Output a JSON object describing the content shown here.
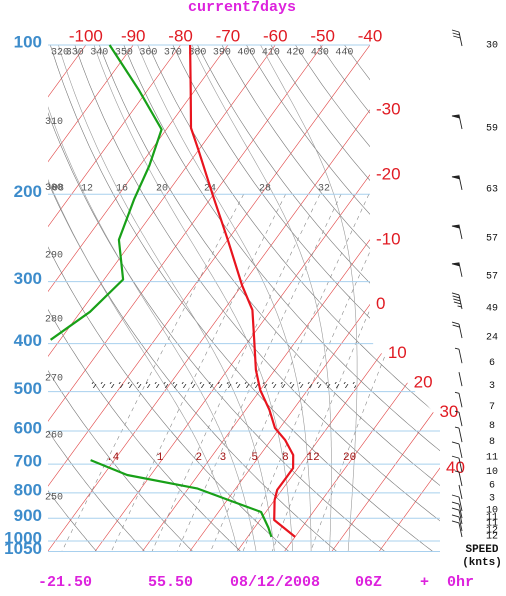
{
  "chart_data": {
    "type": "skewt",
    "title": "current7days",
    "yscale": "log",
    "ylim": [
      100,
      1050
    ],
    "yticks": [
      100,
      200,
      300,
      400,
      500,
      600,
      700,
      800,
      900,
      1000,
      1050
    ],
    "xlim": [
      -108,
      -40
    ],
    "xticks": [
      -100,
      -90,
      -80,
      -70,
      -60,
      -50,
      -40,
      -30,
      -20,
      -10,
      0,
      10,
      20,
      30,
      40
    ],
    "theta_ticks": [
      250,
      260,
      270,
      280,
      290,
      300,
      310,
      320,
      330,
      340,
      350,
      360,
      370,
      380,
      390,
      400,
      410,
      420,
      430,
      440
    ],
    "moist_ticks": [
      {
        "value": 8,
        "label": "08"
      },
      12,
      16,
      20,
      24,
      28,
      32
    ],
    "mixing_ticks": [
      {
        "value": 0.4,
        "label": ".4"
      },
      1,
      2,
      3,
      5,
      8,
      12,
      20
    ],
    "series": [
      {
        "color": "#e8141e",
        "pressure": [
          100,
          123,
          147,
          163,
          201,
          247,
          305,
          342,
          393,
          452,
          496,
          544,
          592,
          626,
          671,
          713,
          753,
          789,
          827,
          907,
          981
        ],
        "values": [
          -78,
          -71,
          -65,
          -60,
          -50,
          -40,
          -30,
          -24,
          -19,
          -14,
          -10,
          -5,
          -1,
          3,
          7,
          9,
          9,
          9,
          10,
          13,
          20
        ]
      },
      {
        "color": "#18a018",
        "pressure": [
          100,
          123,
          148,
          175,
          205,
          247,
          297,
          345,
          393,
          null,
          687,
          736,
          784,
          874,
          941,
          981
        ],
        "values": [
          -95,
          -82,
          -71,
          -68,
          -66,
          -63,
          -56,
          -58,
          -62,
          null,
          -35,
          -25,
          -8,
          9,
          13,
          15
        ]
      }
    ],
    "wind": {
      "pressure": [
        100,
        147,
        195,
        245,
        292,
        339,
        388,
        436,
        485,
        535,
        584,
        629,
        677,
        723,
        771,
        819,
        866,
        895,
        920,
        950,
        977
      ],
      "speed": [
        30,
        59,
        63,
        57,
        57,
        49,
        24,
        6,
        3,
        7,
        8,
        8,
        11,
        10,
        6,
        3,
        10,
        11,
        11,
        12,
        12
      ],
      "speed_label": "SPEED",
      "unit_label": "(knts)"
    }
  },
  "footer": {
    "lat": "-21.50",
    "lon": "55.50",
    "date": "08/12/2008",
    "time": "06Z",
    "plus": "+",
    "offset": "0hr"
  }
}
